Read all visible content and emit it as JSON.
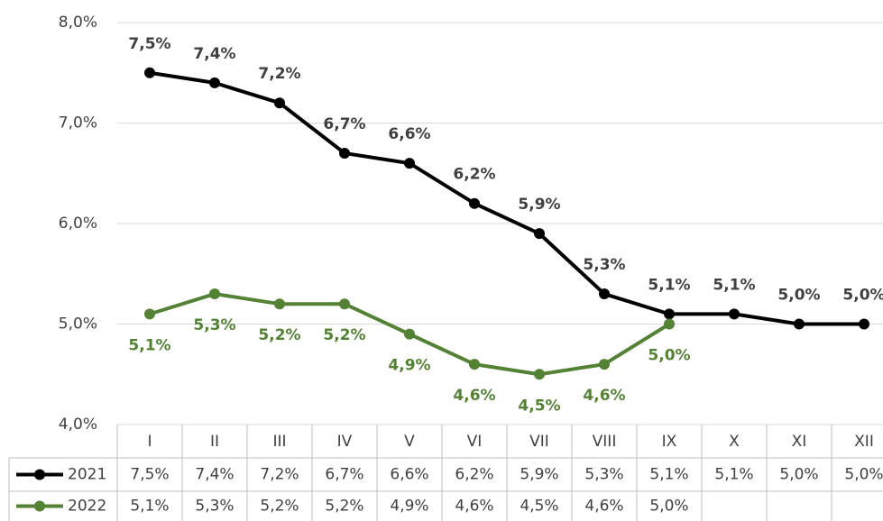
{
  "chart_data": {
    "type": "line",
    "categories": [
      "I",
      "II",
      "III",
      "IV",
      "V",
      "VI",
      "VII",
      "VIII",
      "IX",
      "X",
      "XI",
      "XII"
    ],
    "series": [
      {
        "name": "2021",
        "color": "#000000",
        "label_color": "#404040",
        "values": [
          7.5,
          7.4,
          7.2,
          6.7,
          6.6,
          6.2,
          5.9,
          5.3,
          5.1,
          5.1,
          5.0,
          5.0
        ],
        "value_labels": [
          "7,5%",
          "7,4%",
          "7,2%",
          "6,7%",
          "6,6%",
          "6,2%",
          "5,9%",
          "5,3%",
          "5,1%",
          "5,1%",
          "5,0%",
          "5,0%"
        ]
      },
      {
        "name": "2022",
        "color": "#548235",
        "label_color": "#548235",
        "values": [
          5.1,
          5.3,
          5.2,
          5.2,
          4.9,
          4.6,
          4.5,
          4.6,
          5.0,
          null,
          null,
          null
        ],
        "value_labels": [
          "5,1%",
          "5,3%",
          "5,2%",
          "5,2%",
          "4,9%",
          "4,6%",
          "4,5%",
          "4,6%",
          "5,0%",
          null,
          null,
          null
        ]
      }
    ],
    "ylim": [
      4,
      8
    ],
    "yticks": [
      {
        "value": 4,
        "label": "4,0%"
      },
      {
        "value": 5,
        "label": "5,0%"
      },
      {
        "value": 6,
        "label": "6,0%"
      },
      {
        "value": 7,
        "label": "7,0%"
      },
      {
        "value": 8,
        "label": "8,0%"
      }
    ],
    "grid": true,
    "data_table": true
  }
}
